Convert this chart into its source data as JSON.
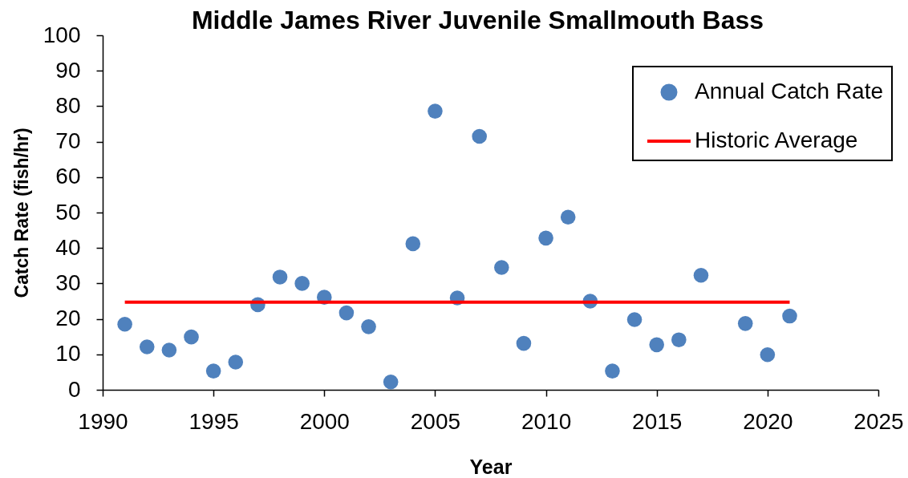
{
  "chart_data": {
    "type": "scatter",
    "title": "Middle James River Juvenile Smallmouth Bass",
    "xlabel": "Year",
    "ylabel": "Catch Rate (fish/hr)",
    "x": [
      1991,
      1992,
      1993,
      1994,
      1995,
      1996,
      1997,
      1998,
      1999,
      2000,
      2001,
      2002,
      2003,
      2004,
      2005,
      2006,
      2007,
      2008,
      2009,
      2010,
      2011,
      2012,
      2013,
      2014,
      2015,
      2016,
      2017,
      2019,
      2020,
      2021
    ],
    "series": [
      {
        "name": "Annual Catch Rate",
        "type": "scatter",
        "marker": "circle",
        "color": "#4f81bd",
        "values": [
          18.5,
          12.1,
          11.2,
          14.9,
          5.3,
          7.8,
          24.0,
          31.8,
          30.0,
          26.1,
          21.7,
          17.8,
          2.2,
          41.2,
          78.6,
          25.9,
          71.5,
          34.5,
          13.1,
          42.8,
          48.7,
          25.0,
          5.3,
          19.8,
          12.7,
          14.1,
          32.3,
          18.7,
          9.9,
          20.8
        ]
      },
      {
        "name": "Historic Average",
        "type": "line",
        "marker": "none",
        "line_style": "solid",
        "color": "#ff0000",
        "x": [
          1991,
          2021
        ],
        "values": [
          24.7,
          24.7
        ]
      }
    ],
    "xlim": [
      1990,
      2025
    ],
    "xticks": [
      1990,
      1995,
      2000,
      2005,
      2010,
      2015,
      2020,
      2025
    ],
    "ylim": [
      0,
      100
    ],
    "yticks": [
      0,
      10,
      20,
      30,
      40,
      50,
      60,
      70,
      80,
      90,
      100
    ],
    "grid": false,
    "legend": "top right"
  }
}
